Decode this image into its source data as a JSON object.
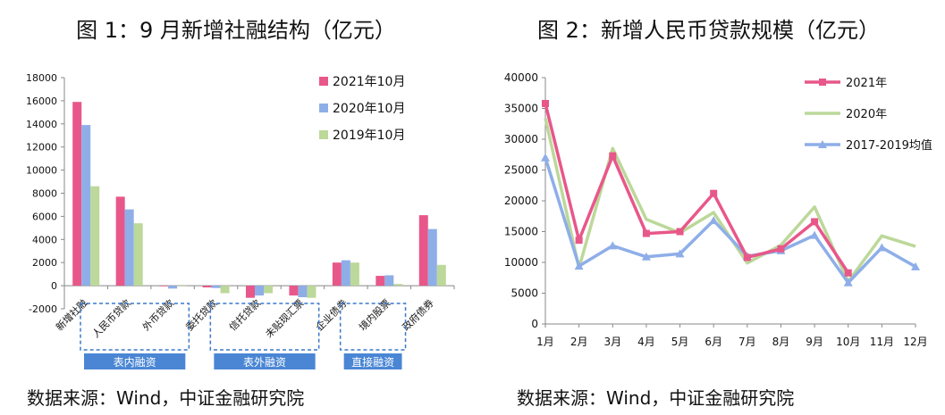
{
  "left": {
    "title": "图 1：9 月新增社融结构（亿元）",
    "source": "数据来源：Wind，中证金融研究院",
    "chart_data": {
      "type": "bar",
      "title": "图 1：9 月新增社融结构（亿元）",
      "categories": [
        "新增社融",
        "人民币贷款",
        "外币贷款",
        "委托贷款",
        "信托贷款",
        "未贴现汇票",
        "企业债券",
        "境内股票",
        "政府债券"
      ],
      "series": [
        {
          "name": "2021年10月",
          "color": "#e8578a",
          "values": [
            15900,
            7700,
            -50,
            -150,
            -1050,
            -850,
            2000,
            850,
            6100
          ]
        },
        {
          "name": "2020年10月",
          "color": "#8eaee8",
          "values": [
            13900,
            6600,
            -250,
            -200,
            -850,
            -1000,
            2200,
            900,
            4900
          ]
        },
        {
          "name": "2019年10月",
          "color": "#bcd89a",
          "values": [
            8600,
            5400,
            -50,
            -650,
            -650,
            -1050,
            2000,
            150,
            1800
          ]
        }
      ],
      "ylim": [
        -2000,
        18000
      ],
      "yticks": [
        -2000,
        0,
        2000,
        4000,
        6000,
        8000,
        10000,
        12000,
        14000,
        16000,
        18000
      ],
      "groups": [
        {
          "label": "表内融资",
          "from": 0,
          "to": 2
        },
        {
          "label": "表外融资",
          "from": 3,
          "to": 5
        },
        {
          "label": "直接融资",
          "from": 6,
          "to": 7
        }
      ],
      "legend": "top-right"
    }
  },
  "right": {
    "title": "图 2：新增人民币贷款规模（亿元）",
    "source": "数据来源：Wind，中证金融研究院",
    "chart_data": {
      "type": "line",
      "title": "图 2：新增人民币贷款规模（亿元）",
      "categories": [
        "1月",
        "2月",
        "3月",
        "4月",
        "5月",
        "6月",
        "7月",
        "8月",
        "9月",
        "10月",
        "11月",
        "12月"
      ],
      "series": [
        {
          "name": "2021年",
          "color": "#e8578a",
          "marker": "square",
          "values": [
            35800,
            13600,
            27300,
            14700,
            15000,
            21200,
            10800,
            12200,
            16600,
            8300,
            null,
            null
          ]
        },
        {
          "name": "2020年",
          "color": "#bcd89a",
          "marker": "none",
          "values": [
            33400,
            9100,
            28500,
            17000,
            14800,
            18100,
            9900,
            12800,
            19000,
            6900,
            14300,
            12600
          ]
        },
        {
          "name": "2017-2019均值",
          "color": "#8eaee8",
          "marker": "triangle",
          "values": [
            27000,
            9400,
            12700,
            10900,
            11400,
            16800,
            11000,
            11900,
            14400,
            6700,
            12400,
            9300
          ]
        }
      ],
      "ylim": [
        0,
        40000
      ],
      "yticks": [
        0,
        5000,
        10000,
        15000,
        20000,
        25000,
        30000,
        35000,
        40000
      ],
      "legend": "top-right"
    }
  }
}
